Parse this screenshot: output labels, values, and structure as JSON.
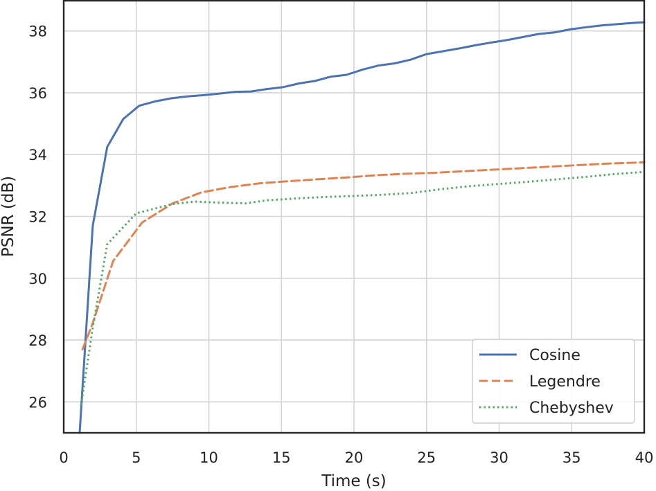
{
  "chart_data": {
    "type": "line",
    "title": "",
    "xlabel": "Time (s)",
    "ylabel": "PSNR (dB)",
    "xlim": [
      0,
      40
    ],
    "ylim": [
      25,
      39
    ],
    "xticks": [
      0,
      5,
      10,
      15,
      20,
      25,
      30,
      35,
      40
    ],
    "yticks": [
      26,
      28,
      30,
      32,
      34,
      36,
      38
    ],
    "grid": true,
    "legend_position": "bottom-right",
    "series": [
      {
        "name": "Cosine",
        "color": "#4c72b0",
        "style": "solid",
        "x": [
          1.1,
          2.0,
          3.0,
          4.1,
          5.2,
          6.3,
          7.4,
          8.5,
          9.6,
          10.7,
          11.8,
          12.9,
          14.0,
          15.1,
          16.2,
          17.3,
          18.4,
          19.5,
          20.6,
          21.7,
          22.8,
          23.9,
          25.0,
          26.1,
          27.2,
          28.3,
          29.4,
          30.5,
          31.6,
          32.7,
          33.8,
          34.9,
          36.0,
          37.1,
          38.2,
          39.3,
          40.0
        ],
        "y": [
          25.0,
          31.7,
          34.25,
          35.15,
          35.58,
          35.72,
          35.82,
          35.88,
          35.92,
          35.97,
          36.03,
          36.04,
          36.12,
          36.18,
          36.3,
          36.38,
          36.52,
          36.58,
          36.75,
          36.88,
          36.95,
          37.07,
          37.25,
          37.34,
          37.43,
          37.53,
          37.62,
          37.7,
          37.8,
          37.9,
          37.95,
          38.05,
          38.12,
          38.18,
          38.22,
          38.26,
          38.28
        ]
      },
      {
        "name": "Legendre",
        "color": "#dd8452",
        "style": "dashed",
        "x": [
          1.3,
          2.0,
          3.4,
          5.4,
          7.5,
          9.5,
          11.5,
          13.5,
          15.5,
          17.5,
          19.5,
          21.5,
          23.5,
          25.5,
          27.5,
          29.5,
          31.5,
          33.5,
          35.5,
          37.5,
          40.0
        ],
        "y": [
          27.7,
          28.55,
          30.55,
          31.8,
          32.42,
          32.78,
          32.95,
          33.07,
          33.14,
          33.2,
          33.26,
          33.33,
          33.38,
          33.41,
          33.46,
          33.51,
          33.56,
          33.61,
          33.66,
          33.71,
          33.75
        ]
      },
      {
        "name": "Chebyshev",
        "color": "#55a868",
        "style": "dotted",
        "x": [
          1.2,
          2.0,
          3.0,
          5.0,
          7.5,
          9.0,
          10.5,
          12.5,
          14.0,
          16.0,
          18.0,
          20.0,
          22.0,
          24.0,
          26.0,
          28.0,
          30.0,
          32.0,
          34.0,
          36.0,
          38.0,
          40.0
        ],
        "y": [
          25.9,
          28.4,
          31.1,
          32.1,
          32.4,
          32.48,
          32.45,
          32.42,
          32.52,
          32.58,
          32.63,
          32.66,
          32.7,
          32.76,
          32.88,
          32.98,
          33.05,
          33.12,
          33.2,
          33.28,
          33.37,
          33.44
        ]
      }
    ]
  }
}
